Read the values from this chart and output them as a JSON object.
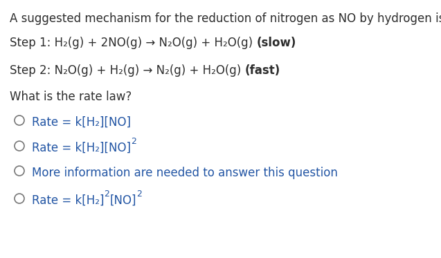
{
  "background_color": "#ffffff",
  "text_color": "#2d2d2d",
  "blue_color": "#2255a4",
  "title_text": "A suggested mechanism for the reduction of nitrogen as NO by hydrogen is:",
  "step1_normal": "Step 1: H₂(g) + 2NO(g) → N₂O(g) + H₂O(g) ",
  "step1_bold": "(slow)",
  "step2_normal": "Step 2: N₂O(g) + H₂(g) → N₂(g) + H₂O(g) ",
  "step2_bold": "(fast)",
  "question": "What is the rate law?",
  "opt1_text": "Rate = k[H₂][NO]",
  "opt2_base": "Rate = k[H₂][NO]",
  "opt2_sup": "2",
  "opt3_text": "More information are needed to answer this question",
  "opt4_base": "Rate = k[H₂]",
  "opt4_sup1": "2",
  "opt4_mid": "[NO]",
  "opt4_sup2": "2",
  "figsize": [
    6.37,
    3.73
  ],
  "dpi": 100,
  "font_size": 12,
  "bold_font_size": 12,
  "sup_font_size": 9
}
